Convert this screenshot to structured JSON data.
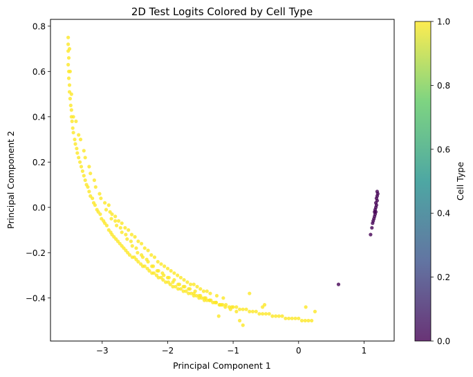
{
  "chart_data": {
    "type": "scatter",
    "title": "2D Test Logits Colored by Cell Type",
    "xlabel": "Principal Component 1",
    "ylabel": "Principal Component 2",
    "xlim": [
      -3.79,
      1.46
    ],
    "ylim": [
      -0.59,
      0.83
    ],
    "x_ticks": [
      -3,
      -2,
      -1,
      0,
      1
    ],
    "x_tick_labels": [
      "−3",
      "−2",
      "−1",
      "0",
      "1"
    ],
    "y_ticks": [
      -0.4,
      -0.2,
      0.0,
      0.2,
      0.4,
      0.6,
      0.8
    ],
    "y_tick_labels": [
      "−0.4",
      "−0.2",
      "0.0",
      "0.2",
      "0.4",
      "0.6",
      "0.8"
    ],
    "grid": false,
    "legend": "none",
    "colormap": "viridis",
    "colormap_stops": [
      "#440154",
      "#3b528b",
      "#21918c",
      "#5ec962",
      "#fde725"
    ],
    "marker_alpha": 0.8,
    "colorbar": {
      "label": "Cell Type",
      "range": [
        0.0,
        1.0
      ],
      "ticks": [
        0.0,
        0.2,
        0.4,
        0.6,
        0.8,
        1.0
      ],
      "tick_labels": [
        "0.0",
        "0.2",
        "0.4",
        "0.6",
        "0.8",
        "1.0"
      ]
    },
    "series": [
      {
        "cell_type": 1,
        "color": "#fde725",
        "x": [
          -3.52,
          -3.52,
          -3.52,
          -3.51,
          -3.52,
          -3.51,
          -3.51,
          -3.5,
          -3.5,
          -3.49,
          -3.48,
          -3.47,
          -3.47,
          -3.46,
          -3.45,
          -3.44,
          -3.42,
          -3.41,
          -3.39,
          -3.38,
          -3.36,
          -3.34,
          -3.32,
          -3.3,
          -3.28,
          -3.26,
          -3.24,
          -3.22,
          -3.2,
          -3.18,
          -3.15,
          -3.13,
          -3.11,
          -3.08,
          -3.06,
          -3.03,
          -3.01,
          -2.98,
          -2.96,
          -2.93,
          -2.9,
          -2.87,
          -2.85,
          -2.82,
          -2.79,
          -2.76,
          -2.73,
          -2.7,
          -2.67,
          -2.64,
          -2.61,
          -2.58,
          -2.54,
          -2.51,
          -2.48,
          -2.45,
          -2.41,
          -2.38,
          -2.35,
          -2.31,
          -2.28,
          -2.24,
          -2.21,
          -2.17,
          -2.14,
          -2.1,
          -2.07,
          -2.03,
          -1.99,
          -1.96,
          -1.92,
          -1.88,
          -1.84,
          -1.8,
          -1.76,
          -1.72,
          -1.68,
          -1.64,
          -1.6,
          -1.56,
          -1.52,
          -1.48,
          -1.44,
          -1.4,
          -1.36,
          -1.31,
          -1.26,
          -1.21,
          -1.16,
          -1.11,
          -1.06,
          -1.0,
          -0.95,
          -0.9,
          -0.85,
          -0.8,
          -0.75,
          -0.7,
          -0.65,
          -0.6,
          -0.55,
          -0.5,
          -0.45,
          -0.4,
          -0.35,
          -0.3,
          -0.25,
          -0.2,
          -0.15,
          -0.1,
          -0.05,
          0.0,
          0.05,
          0.1,
          0.15,
          0.2,
          -3.5,
          -3.47,
          -3.4,
          -3.33,
          -3.26,
          -3.18,
          -3.1,
          -3.02,
          -2.94,
          -2.86,
          -2.78,
          -2.7,
          -2.62,
          -2.54,
          -2.46,
          -2.38,
          -2.3,
          -2.22,
          -2.14,
          -2.06,
          -1.98,
          -1.9,
          -1.82,
          -1.74,
          -1.66,
          -1.58,
          -1.5,
          -1.42,
          -1.34,
          -1.26,
          -1.18,
          -3.49,
          -3.44,
          -3.36,
          -3.28,
          -3.2,
          -3.12,
          -3.04,
          -2.96,
          -2.88,
          -2.8,
          -2.72,
          -2.64,
          -2.56,
          -2.48,
          -2.4,
          -2.32,
          -2.24,
          -2.16,
          -2.08,
          -2.0,
          -1.92,
          -1.84,
          -1.76,
          -1.68,
          -1.6,
          -1.52,
          -1.44,
          -1.36,
          -1.28,
          -1.2,
          -1.12,
          -1.04,
          -2.9,
          -2.8,
          -2.7,
          -2.6,
          -2.5,
          -2.4,
          -2.3,
          -2.2,
          -2.1,
          -2.0,
          -1.9,
          -1.8,
          -1.7,
          -1.6,
          -1.5,
          -1.4,
          -2.85,
          -2.75,
          -2.65,
          -2.55,
          -2.45,
          -2.35,
          -2.25,
          -2.15,
          -2.05,
          -1.95,
          -1.85,
          -1.75,
          -1.65,
          -1.55,
          -1.45,
          -1.35,
          -1.25,
          -1.15,
          -0.95,
          -0.85,
          -0.9,
          -0.75,
          -0.55,
          -0.52,
          0.11,
          0.25,
          -1.22,
          -1.02
        ],
        "y": [
          0.75,
          0.72,
          0.69,
          0.66,
          0.63,
          0.6,
          0.57,
          0.54,
          0.51,
          0.48,
          0.45,
          0.43,
          0.4,
          0.38,
          0.35,
          0.33,
          0.3,
          0.28,
          0.26,
          0.24,
          0.22,
          0.2,
          0.18,
          0.16,
          0.14,
          0.12,
          0.1,
          0.09,
          0.07,
          0.05,
          0.04,
          0.02,
          0.01,
          -0.01,
          -0.02,
          -0.03,
          -0.05,
          -0.06,
          -0.07,
          -0.08,
          -0.1,
          -0.11,
          -0.12,
          -0.13,
          -0.14,
          -0.15,
          -0.16,
          -0.17,
          -0.18,
          -0.19,
          -0.2,
          -0.21,
          -0.22,
          -0.22,
          -0.23,
          -0.24,
          -0.25,
          -0.26,
          -0.26,
          -0.27,
          -0.28,
          -0.29,
          -0.29,
          -0.3,
          -0.31,
          -0.31,
          -0.32,
          -0.33,
          -0.33,
          -0.34,
          -0.35,
          -0.35,
          -0.36,
          -0.36,
          -0.37,
          -0.37,
          -0.38,
          -0.38,
          -0.39,
          -0.39,
          -0.4,
          -0.4,
          -0.41,
          -0.41,
          -0.41,
          -0.42,
          -0.42,
          -0.43,
          -0.43,
          -0.43,
          -0.44,
          -0.44,
          -0.44,
          -0.45,
          -0.45,
          -0.45,
          -0.46,
          -0.46,
          -0.46,
          -0.47,
          -0.47,
          -0.47,
          -0.47,
          -0.48,
          -0.48,
          -0.48,
          -0.48,
          -0.49,
          -0.49,
          -0.49,
          -0.49,
          -0.49,
          -0.5,
          -0.5,
          -0.5,
          -0.5,
          0.7,
          0.5,
          0.38,
          0.3,
          0.22,
          0.15,
          0.09,
          0.04,
          -0.01,
          -0.05,
          -0.08,
          -0.11,
          -0.14,
          -0.17,
          -0.2,
          -0.22,
          -0.24,
          -0.26,
          -0.28,
          -0.3,
          -0.31,
          -0.32,
          -0.34,
          -0.35,
          -0.36,
          -0.37,
          -0.39,
          -0.4,
          -0.41,
          -0.42,
          -0.43,
          0.6,
          0.4,
          0.32,
          0.25,
          0.18,
          0.12,
          0.06,
          0.02,
          -0.02,
          -0.06,
          -0.09,
          -0.12,
          -0.15,
          -0.18,
          -0.21,
          -0.23,
          -0.26,
          -0.28,
          -0.29,
          -0.31,
          -0.33,
          -0.34,
          -0.35,
          -0.36,
          -0.38,
          -0.39,
          -0.4,
          -0.41,
          -0.42,
          -0.43,
          -0.44,
          -0.45,
          0.01,
          -0.04,
          -0.07,
          -0.1,
          -0.13,
          -0.16,
          -0.19,
          -0.22,
          -0.25,
          -0.27,
          -0.29,
          -0.31,
          -0.33,
          -0.34,
          -0.36,
          -0.37,
          -0.03,
          -0.06,
          -0.09,
          -0.12,
          -0.15,
          -0.18,
          -0.21,
          -0.24,
          -0.26,
          -0.28,
          -0.3,
          -0.32,
          -0.34,
          -0.35,
          -0.37,
          -0.38,
          -0.39,
          -0.4,
          -0.46,
          -0.52,
          -0.5,
          -0.38,
          -0.44,
          -0.43,
          -0.44,
          -0.46,
          -0.48,
          -0.44
        ]
      },
      {
        "cell_type": 0,
        "color": "#440154",
        "x": [
          1.2,
          1.21,
          1.2,
          1.19,
          1.2,
          1.18,
          1.19,
          1.18,
          1.17,
          1.18,
          1.16,
          1.17,
          1.16,
          1.15,
          1.14,
          1.13,
          1.12,
          1.1,
          0.61
        ],
        "y": [
          0.07,
          0.06,
          0.05,
          0.04,
          0.03,
          0.02,
          0.01,
          0.0,
          -0.01,
          -0.02,
          -0.02,
          -0.03,
          -0.04,
          -0.05,
          -0.06,
          -0.07,
          -0.09,
          -0.12,
          -0.34
        ]
      }
    ]
  }
}
